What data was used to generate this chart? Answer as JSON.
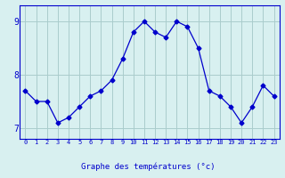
{
  "x": [
    0,
    1,
    2,
    3,
    4,
    5,
    6,
    7,
    8,
    9,
    10,
    11,
    12,
    13,
    14,
    15,
    16,
    17,
    18,
    19,
    20,
    21,
    22,
    23
  ],
  "y": [
    7.7,
    7.5,
    7.5,
    7.1,
    7.2,
    7.4,
    7.6,
    7.7,
    7.9,
    8.3,
    8.8,
    9.0,
    8.8,
    8.7,
    9.0,
    8.9,
    8.5,
    7.7,
    7.6,
    7.4,
    7.1,
    7.4,
    7.8,
    7.6
  ],
  "xlabel": "Graphe des températures (°c)",
  "ylim": [
    6.8,
    9.3
  ],
  "xlim": [
    -0.5,
    23.5
  ],
  "line_color": "#0000cc",
  "marker": "D",
  "marker_size": 2.5,
  "bg_color": "#d8f0f0",
  "grid_color": "#aacccc",
  "axis_color": "#0000cc",
  "yticks": [
    7,
    8,
    9
  ],
  "xticks": [
    0,
    1,
    2,
    3,
    4,
    5,
    6,
    7,
    8,
    9,
    10,
    11,
    12,
    13,
    14,
    15,
    16,
    17,
    18,
    19,
    20,
    21,
    22,
    23
  ]
}
